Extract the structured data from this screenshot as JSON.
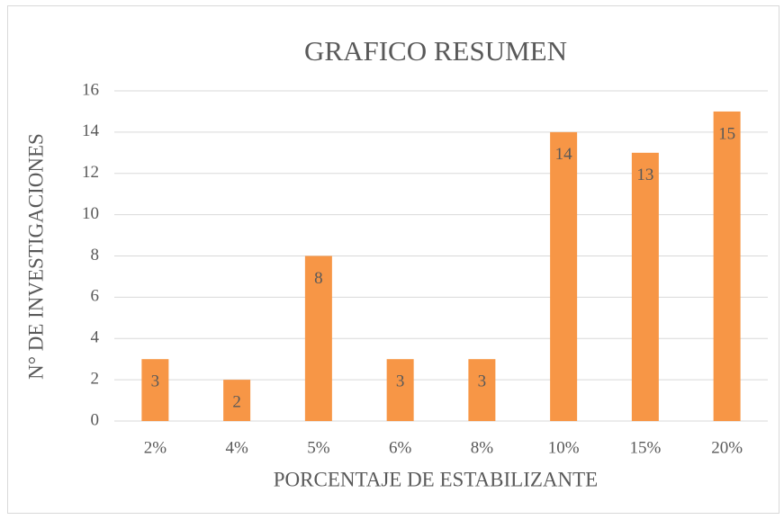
{
  "chart_data": {
    "type": "bar",
    "title": "GRAFICO RESUMEN",
    "x_label": "PORCENTAJE DE ESTABILIZANTE",
    "y_label": "N° DE INVESTIGACIONES",
    "categories": [
      "2%",
      "4%",
      "5%",
      "6%",
      "8%",
      "10%",
      "15%",
      "20%"
    ],
    "values": [
      3,
      2,
      8,
      3,
      3,
      14,
      13,
      15
    ],
    "color": "#f79646",
    "ylim": [
      0,
      16
    ],
    "yticks": [
      0,
      2,
      4,
      6,
      8,
      10,
      12,
      14,
      16
    ],
    "grid": true
  }
}
